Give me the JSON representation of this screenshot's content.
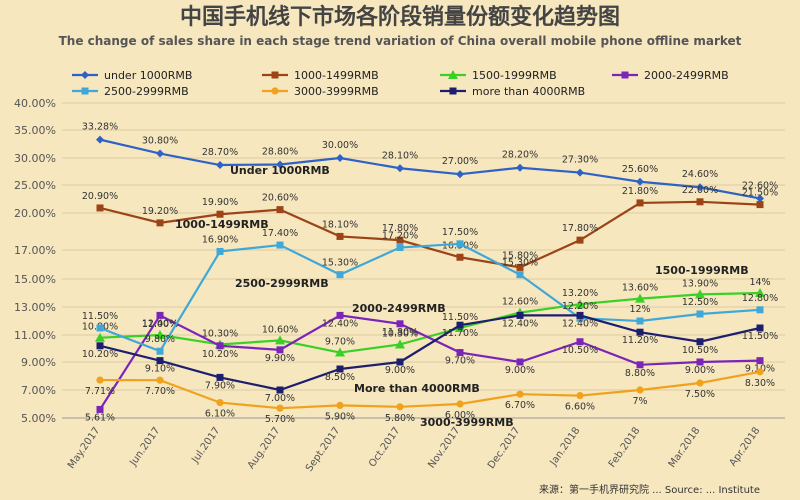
{
  "chart_data": {
    "type": "line",
    "title": "中国手机线下市场各阶段销量份额变化趋势图",
    "subtitle": "The change of sales share in each stage trend variation of China overall mobile phone offline market",
    "categories": [
      "May.2017",
      "Jun.2017",
      "Jul.2017",
      "Aug.2017",
      "Sept.2017",
      "Oct.2017",
      "Nov.2017",
      "Dec.2017",
      "Jan.2018",
      "Feb.2018",
      "Mar.2018",
      "Apr.2018"
    ],
    "y_ticks": [
      "5.00%",
      "7.00%",
      "9.00%",
      "11.00%",
      "13.00%",
      "15.00%",
      "17.00%",
      "20.00%",
      "25.00%",
      "30.00%",
      "35.00%",
      "40.00%"
    ],
    "grid": true,
    "legend_position": "top",
    "series": [
      {
        "name": "under 1000RMB",
        "color": "#2f62c6",
        "marker": "diamond",
        "values": [
          33.28,
          30.8,
          28.7,
          28.8,
          30.0,
          28.1,
          27.0,
          28.2,
          27.3,
          25.6,
          24.6,
          22.6
        ],
        "labels": [
          "33.28%",
          "30.80%",
          "28.70%",
          "28.80%",
          "30.00%",
          "28.10%",
          "27.00%",
          "28.20%",
          "27.30%",
          "25.60%",
          "24.60%",
          "22.60%"
        ]
      },
      {
        "name": "1000-1499RMB",
        "color": "#9c4317",
        "marker": "square",
        "values": [
          20.9,
          19.2,
          19.9,
          20.6,
          18.1,
          17.8,
          16.5,
          15.8,
          17.8,
          21.8,
          22.0,
          21.5
        ],
        "labels": [
          "20.90%",
          "19.20%",
          "19.90%",
          "20.60%",
          "18.10%",
          "17.80%",
          "16.50%",
          "15.80%",
          "17.80%",
          "21.80%",
          "22.00%",
          "21.50%"
        ]
      },
      {
        "name": "1500-1999RMB",
        "color": "#3ad025",
        "marker": "triangle",
        "values": [
          10.8,
          11.0,
          10.3,
          10.6,
          9.7,
          10.3,
          11.5,
          12.6,
          13.2,
          13.6,
          13.9,
          14.0
        ],
        "labels": [
          "10.80%",
          "11.00%",
          "10.30%",
          "10.60%",
          "9.70%",
          "10.30%",
          "11.50%",
          "12.60%",
          "13.20%",
          "13.60%",
          "13.90%",
          "14%"
        ]
      },
      {
        "name": "2000-2499RMB",
        "color": "#7b24b8",
        "marker": "square",
        "values": [
          5.61,
          12.4,
          10.2,
          9.9,
          12.4,
          11.8,
          9.7,
          9.0,
          10.5,
          8.8,
          9.0,
          9.1
        ],
        "labels": [
          "5.61%",
          "12.40%",
          "10.20%",
          "9.90%",
          "12.40%",
          "11.80%",
          "9.70%",
          "9.00%",
          "10.50%",
          "8.80%",
          "9.00%",
          "9.10%"
        ]
      },
      {
        "name": "2500-2999RMB",
        "color": "#3fa8d8",
        "marker": "square",
        "values": [
          11.5,
          9.8,
          16.9,
          17.4,
          15.3,
          17.2,
          17.5,
          15.3,
          12.2,
          12.0,
          12.5,
          12.8
        ],
        "labels": [
          "11.50%",
          "9.80%",
          "16.90%",
          "17.40%",
          "15.30%",
          "17.20%",
          "17.50%",
          "15.30%",
          "12.20%",
          "12%",
          "12.50%",
          "12.80%"
        ]
      },
      {
        "name": "3000-3999RMB",
        "color": "#f0a21e",
        "marker": "circle",
        "values": [
          7.71,
          7.7,
          6.1,
          5.7,
          5.9,
          5.8,
          6.0,
          6.7,
          6.6,
          7.0,
          7.5,
          8.3
        ],
        "labels": [
          "7.71%",
          "7.70%",
          "6.10%",
          "5.70%",
          "5.90%",
          "5.80%",
          "6.00%",
          "6.70%",
          "6.60%",
          "7%",
          "7.50%",
          "8.30%"
        ]
      },
      {
        "name": "more than 4000RMB",
        "color": "#1d1f6e",
        "marker": "square",
        "values": [
          10.2,
          9.1,
          7.9,
          7.0,
          8.5,
          9.0,
          11.7,
          12.4,
          12.4,
          11.2,
          10.5,
          11.5
        ],
        "labels": [
          "10.20%",
          "9.10%",
          "7.90%",
          "7.00%",
          "8.50%",
          "9.00%",
          "11.70%",
          "12.40%",
          "12.40%",
          "11.20%",
          "10.50%",
          "11.50%"
        ]
      }
    ],
    "annotations": [
      {
        "text": "Under 1000RMB",
        "series": 0
      },
      {
        "text": "1000-1499RMB",
        "series": 1
      },
      {
        "text": "1500-1999RMB",
        "series": 2
      },
      {
        "text": "2000-2499RMB",
        "series": 3
      },
      {
        "text": "2500-2999RMB",
        "series": 4
      },
      {
        "text": "3000-3999RMB",
        "series": 5
      },
      {
        "text": "More than 4000RMB",
        "series": 6
      }
    ],
    "source": "来源：第一手机界研究院 ... Source: ... Institute"
  }
}
